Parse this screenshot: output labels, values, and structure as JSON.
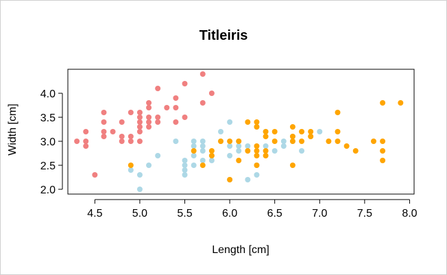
{
  "chart_data": {
    "type": "scatter",
    "title": "Titleiris",
    "xlabel": "Length [cm]",
    "ylabel": "Width [cm]",
    "xlim": [
      4.2,
      8.05
    ],
    "ylim": [
      1.9,
      4.5
    ],
    "x_ticks": [
      4.5,
      5.0,
      5.5,
      6.0,
      6.5,
      7.0,
      7.5,
      8.0
    ],
    "x_tick_labels": [
      "4.5",
      "5.0",
      "5.5",
      "6.0",
      "6.5",
      "7.0",
      "7.5",
      "8.0"
    ],
    "y_ticks": [
      2.0,
      2.5,
      3.0,
      3.5,
      4.0
    ],
    "y_tick_labels": [
      "2.0",
      "2.5",
      "3.0",
      "3.5",
      "4.0"
    ],
    "grid": false,
    "legend": "none",
    "series": [
      {
        "color": "#F08080",
        "points": [
          [
            4.3,
            3.0
          ],
          [
            4.4,
            2.9
          ],
          [
            4.4,
            3.0
          ],
          [
            4.4,
            3.2
          ],
          [
            4.5,
            2.3
          ],
          [
            4.6,
            3.1
          ],
          [
            4.6,
            3.2
          ],
          [
            4.6,
            3.4
          ],
          [
            4.6,
            3.6
          ],
          [
            4.7,
            3.2
          ],
          [
            4.8,
            3.0
          ],
          [
            4.8,
            3.1
          ],
          [
            4.8,
            3.4
          ],
          [
            4.9,
            3.0
          ],
          [
            4.9,
            3.1
          ],
          [
            4.9,
            3.6
          ],
          [
            5.0,
            3.0
          ],
          [
            5.0,
            3.2
          ],
          [
            5.0,
            3.3
          ],
          [
            5.0,
            3.4
          ],
          [
            5.0,
            3.5
          ],
          [
            5.0,
            3.6
          ],
          [
            5.1,
            3.3
          ],
          [
            5.1,
            3.4
          ],
          [
            5.1,
            3.5
          ],
          [
            5.1,
            3.7
          ],
          [
            5.1,
            3.8
          ],
          [
            5.2,
            3.4
          ],
          [
            5.2,
            3.5
          ],
          [
            5.2,
            4.1
          ],
          [
            5.3,
            3.7
          ],
          [
            5.4,
            3.4
          ],
          [
            5.4,
            3.7
          ],
          [
            5.4,
            3.9
          ],
          [
            5.5,
            3.5
          ],
          [
            5.5,
            4.2
          ],
          [
            5.7,
            3.8
          ],
          [
            5.7,
            4.4
          ],
          [
            5.8,
            4.0
          ]
        ]
      },
      {
        "color": "#ADD8E6",
        "points": [
          [
            4.9,
            2.4
          ],
          [
            5.0,
            2.0
          ],
          [
            5.0,
            2.3
          ],
          [
            5.1,
            2.5
          ],
          [
            5.2,
            2.7
          ],
          [
            5.4,
            3.0
          ],
          [
            5.5,
            2.3
          ],
          [
            5.5,
            2.4
          ],
          [
            5.5,
            2.5
          ],
          [
            5.5,
            2.6
          ],
          [
            5.6,
            2.5
          ],
          [
            5.6,
            2.7
          ],
          [
            5.6,
            2.9
          ],
          [
            5.6,
            3.0
          ],
          [
            5.7,
            2.6
          ],
          [
            5.7,
            2.8
          ],
          [
            5.7,
            2.9
          ],
          [
            5.7,
            3.0
          ],
          [
            5.8,
            2.6
          ],
          [
            5.8,
            2.7
          ],
          [
            5.9,
            3.0
          ],
          [
            5.9,
            3.2
          ],
          [
            6.0,
            2.2
          ],
          [
            6.0,
            2.7
          ],
          [
            6.0,
            2.9
          ],
          [
            6.0,
            3.4
          ],
          [
            6.1,
            2.8
          ],
          [
            6.1,
            2.9
          ],
          [
            6.1,
            3.0
          ],
          [
            6.2,
            2.2
          ],
          [
            6.2,
            2.9
          ],
          [
            6.3,
            2.3
          ],
          [
            6.3,
            2.5
          ],
          [
            6.3,
            3.3
          ],
          [
            6.4,
            2.9
          ],
          [
            6.4,
            3.2
          ],
          [
            6.5,
            2.8
          ],
          [
            6.6,
            2.9
          ],
          [
            6.6,
            3.0
          ],
          [
            6.7,
            3.0
          ],
          [
            6.7,
            3.1
          ],
          [
            6.8,
            2.8
          ],
          [
            6.9,
            3.1
          ],
          [
            7.0,
            3.2
          ]
        ]
      },
      {
        "color": "#FFA500",
        "points": [
          [
            4.9,
            2.5
          ],
          [
            5.6,
            2.8
          ],
          [
            5.7,
            2.5
          ],
          [
            5.8,
            2.7
          ],
          [
            5.8,
            2.8
          ],
          [
            5.9,
            3.0
          ],
          [
            6.0,
            2.2
          ],
          [
            6.0,
            3.0
          ],
          [
            6.1,
            2.6
          ],
          [
            6.1,
            3.0
          ],
          [
            6.2,
            2.8
          ],
          [
            6.2,
            3.4
          ],
          [
            6.3,
            2.5
          ],
          [
            6.3,
            2.7
          ],
          [
            6.3,
            2.8
          ],
          [
            6.3,
            2.9
          ],
          [
            6.3,
            3.3
          ],
          [
            6.3,
            3.4
          ],
          [
            6.4,
            2.7
          ],
          [
            6.4,
            2.8
          ],
          [
            6.4,
            3.1
          ],
          [
            6.4,
            3.2
          ],
          [
            6.5,
            3.0
          ],
          [
            6.5,
            3.2
          ],
          [
            6.7,
            2.5
          ],
          [
            6.7,
            3.0
          ],
          [
            6.7,
            3.1
          ],
          [
            6.7,
            3.3
          ],
          [
            6.8,
            3.0
          ],
          [
            6.8,
            3.2
          ],
          [
            6.9,
            3.1
          ],
          [
            6.9,
            3.2
          ],
          [
            7.1,
            3.0
          ],
          [
            7.2,
            3.0
          ],
          [
            7.2,
            3.2
          ],
          [
            7.2,
            3.6
          ],
          [
            7.3,
            2.9
          ],
          [
            7.4,
            2.8
          ],
          [
            7.6,
            3.0
          ],
          [
            7.7,
            2.6
          ],
          [
            7.7,
            2.8
          ],
          [
            7.7,
            3.0
          ],
          [
            7.7,
            3.8
          ],
          [
            7.9,
            3.8
          ]
        ]
      }
    ]
  }
}
